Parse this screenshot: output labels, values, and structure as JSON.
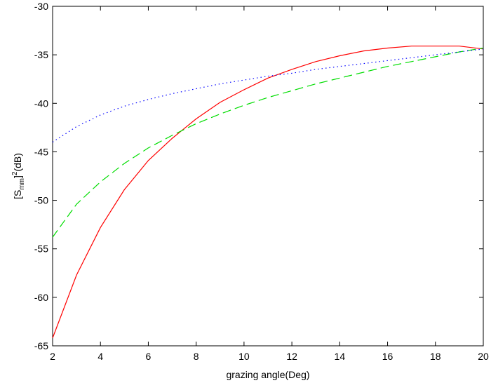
{
  "chart_data": {
    "type": "line",
    "title": "",
    "xlabel": "grazing angle(Deg)",
    "ylabel": {
      "base": "[S",
      "subscript": "mm",
      "close": "]",
      "superscript": "2",
      "unit": "(dB)"
    },
    "xlim": [
      2,
      20
    ],
    "ylim": [
      -65,
      -30
    ],
    "xticks": [
      2,
      4,
      6,
      8,
      10,
      12,
      14,
      16,
      18,
      20
    ],
    "yticks": [
      -30,
      -35,
      -40,
      -45,
      -50,
      -55,
      -60,
      -65
    ],
    "grid": false,
    "legend": "none",
    "series": [
      {
        "color": "#ff0000",
        "style": "solid",
        "x": [
          2,
          3,
          4,
          5,
          6,
          7,
          8,
          9,
          10,
          11,
          12,
          13,
          14,
          15,
          16,
          17,
          18,
          19,
          20
        ],
        "y": [
          -64.2,
          -57.7,
          -52.8,
          -48.9,
          -45.9,
          -43.6,
          -41.6,
          -39.9,
          -38.6,
          -37.4,
          -36.5,
          -35.7,
          -35.1,
          -34.6,
          -34.3,
          -34.1,
          -34.1,
          -34.1,
          -34.4
        ]
      },
      {
        "color": "#00dd00",
        "style": "dashed",
        "x": [
          2,
          3,
          4,
          5,
          6,
          7,
          8,
          9,
          10,
          11,
          12,
          13,
          14,
          15,
          16,
          17,
          18,
          19,
          20
        ],
        "y": [
          -53.8,
          -50.4,
          -48.1,
          -46.2,
          -44.6,
          -43.3,
          -42.1,
          -41.1,
          -40.2,
          -39.4,
          -38.7,
          -38.0,
          -37.4,
          -36.8,
          -36.2,
          -35.7,
          -35.2,
          -34.7,
          -34.3
        ]
      },
      {
        "color": "#0000ff",
        "style": "dotted",
        "x": [
          2,
          3,
          4,
          5,
          6,
          7,
          8,
          9,
          10,
          11,
          12,
          13,
          14,
          15,
          16,
          17,
          18,
          19,
          20
        ],
        "y": [
          -44.0,
          -42.4,
          -41.2,
          -40.3,
          -39.6,
          -39.0,
          -38.5,
          -38.0,
          -37.6,
          -37.2,
          -36.9,
          -36.5,
          -36.2,
          -35.9,
          -35.6,
          -35.3,
          -35.0,
          -34.7,
          -34.4
        ]
      }
    ]
  }
}
